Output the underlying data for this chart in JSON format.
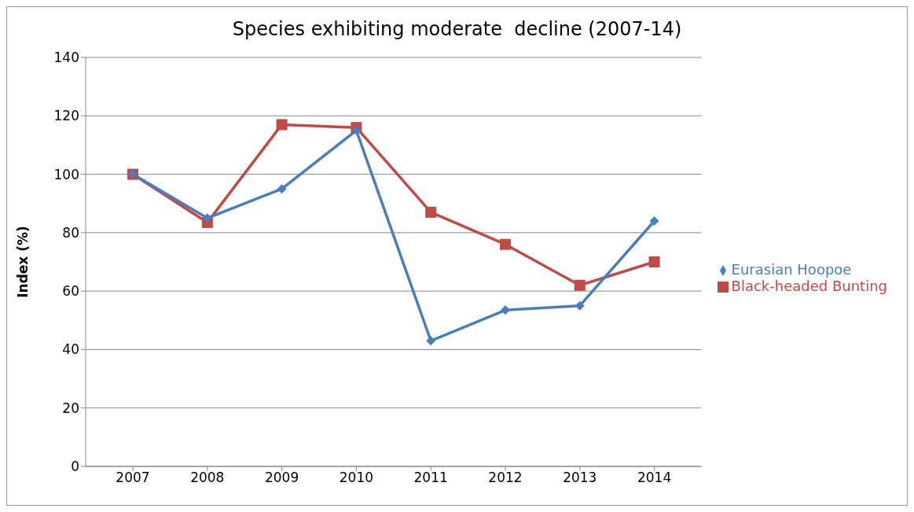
{
  "chart_data": {
    "type": "line",
    "title": "Species exhibiting moderate  decline (2007-14)",
    "ylabel": "Index (%)",
    "categories": [
      "2007",
      "2008",
      "2009",
      "2010",
      "2011",
      "2012",
      "2013",
      "2014"
    ],
    "series": [
      {
        "name": "Eurasian Hoopoe",
        "color": "#4a7ebb",
        "marker": "diamond",
        "values": [
          100,
          85,
          95,
          115,
          43,
          53.5,
          55,
          84
        ]
      },
      {
        "name": "Black-headed Bunting",
        "color": "#be4b48",
        "marker": "square",
        "values": [
          100,
          83.5,
          117,
          116,
          87,
          76,
          62,
          70
        ]
      }
    ],
    "ylim": [
      0,
      140
    ],
    "yticks": [
      0,
      20,
      40,
      60,
      80,
      100,
      120,
      140
    ],
    "grid": "y",
    "legend": "right"
  }
}
